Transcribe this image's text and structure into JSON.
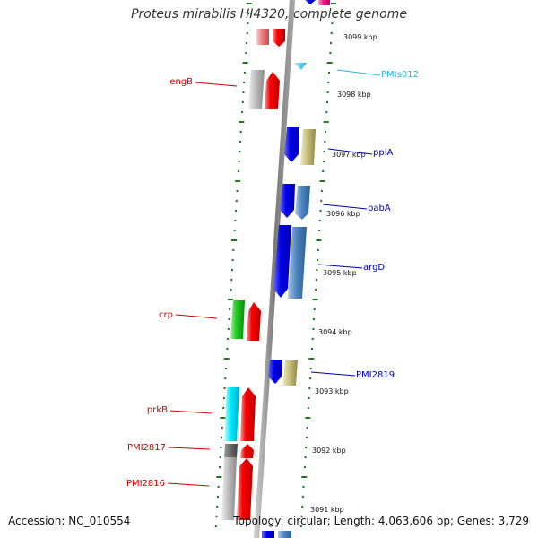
{
  "title": "Proteus mirabilis HI4320, complete genome",
  "footer": {
    "accession": "Accession: NC_010554",
    "summary": "Topology: circular; Length: 4,063,606 bp; Genes: 3,729"
  },
  "colors": {
    "backbone": "#8c8c8c",
    "ticks": "#1e7a1e",
    "label_reverse": "#cc0000",
    "label_forward": "#0000aa",
    "label_misc": "#22b8dd"
  },
  "scale_labels": [
    {
      "id": "3099",
      "text": "3099 kbp"
    },
    {
      "id": "3098",
      "text": "3098 kbp"
    },
    {
      "id": "3097",
      "text": "3097 kbp"
    },
    {
      "id": "3096",
      "text": "3096 kbp"
    },
    {
      "id": "3095",
      "text": "3095 kbp"
    },
    {
      "id": "3094",
      "text": "3094 kbp"
    },
    {
      "id": "3093",
      "text": "3093 kbp"
    },
    {
      "id": "3092",
      "text": "3092 kbp"
    },
    {
      "id": "3091",
      "text": "3091 kbp"
    }
  ],
  "gene_labels": [
    {
      "id": "engB",
      "text": "engB",
      "strand": "reverse"
    },
    {
      "id": "crp",
      "text": "crp",
      "strand": "reverse"
    },
    {
      "id": "prkB",
      "text": "prkB",
      "strand": "reverse"
    },
    {
      "id": "PMI2817",
      "text": "PMI2817",
      "strand": "reverse"
    },
    {
      "id": "PMI2816",
      "text": "PMI2816",
      "strand": "reverse"
    },
    {
      "id": "PMIs012",
      "text": "PMIs012",
      "strand": "misc"
    },
    {
      "id": "ppiA",
      "text": "ppiA",
      "strand": "forward"
    },
    {
      "id": "pabA",
      "text": "pabA",
      "strand": "forward"
    },
    {
      "id": "argD",
      "text": "argD",
      "strand": "forward"
    },
    {
      "id": "PMI2819",
      "text": "PMI2819",
      "strand": "forward"
    }
  ]
}
